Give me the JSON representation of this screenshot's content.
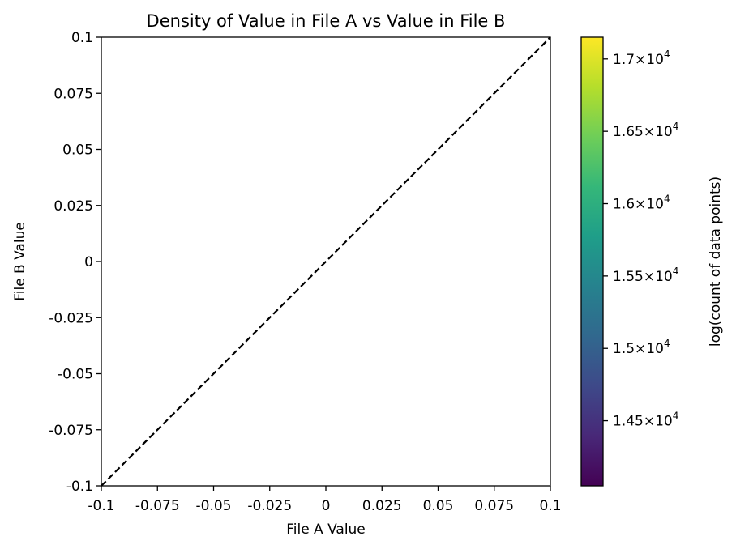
{
  "chart_data": {
    "type": "heatmap",
    "title": "Density of Value in File A vs Value in File B",
    "xlabel": "File A Value",
    "ylabel": "File B Value",
    "xlim": [
      -0.1,
      0.1
    ],
    "ylim": [
      -0.1,
      0.1
    ],
    "x_ticks": [
      -0.1,
      -0.075,
      -0.05,
      -0.025,
      0,
      0.025,
      0.05,
      0.075,
      0.1
    ],
    "x_tick_labels": [
      "-0.1",
      "-0.075",
      "-0.05",
      "-0.025",
      "0",
      "0.025",
      "0.05",
      "0.075",
      "0.1"
    ],
    "y_ticks": [
      -0.1,
      -0.075,
      -0.05,
      -0.025,
      0,
      0.025,
      0.05,
      0.075,
      0.1
    ],
    "y_tick_labels": [
      "-0.1",
      "-0.075",
      "-0.05",
      "-0.025",
      "0",
      "0.025",
      "0.05",
      "0.075",
      "0.1"
    ],
    "reference_line": {
      "style": "dashed",
      "color": "#000000",
      "points": [
        [
          -0.1,
          -0.1
        ],
        [
          0.1,
          0.1
        ]
      ]
    },
    "grid": false,
    "colorbar": {
      "label": "log(count of data points)",
      "colormap": "viridis",
      "range": [
        14050,
        17150
      ],
      "ticks": [
        14500,
        15000,
        15500,
        16000,
        16500,
        17000
      ],
      "tick_mantissas": [
        "1.45",
        "1.5",
        "1.55",
        "1.6",
        "1.65",
        "1.7"
      ],
      "tick_exponent": "4",
      "colors": [
        "#440154",
        "#482878",
        "#3e4989",
        "#31688e",
        "#26828e",
        "#1f9e89",
        "#35b779",
        "#6ece58",
        "#b5de2b",
        "#fde725"
      ]
    }
  }
}
